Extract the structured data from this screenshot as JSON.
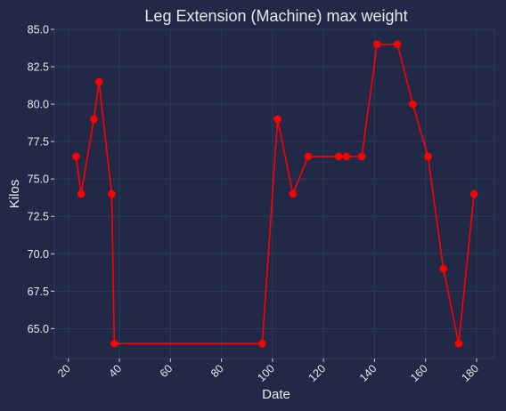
{
  "chart_data": {
    "type": "line",
    "title": "Leg Extension (Machine) max weight",
    "xlabel": "Date",
    "ylabel": "Kilos",
    "xlim": [
      14.5,
      187
    ],
    "ylim": [
      63,
      85
    ],
    "xticks": [
      20,
      40,
      60,
      80,
      100,
      120,
      140,
      160,
      180
    ],
    "yticks": [
      65.0,
      67.5,
      70.0,
      72.5,
      75.0,
      77.5,
      80.0,
      82.5,
      85.0
    ],
    "grid": true,
    "series": [
      {
        "name": "max weight",
        "color": "#ff0000",
        "x": [
          23,
          25,
          30,
          32,
          37,
          38,
          96,
          102,
          108,
          114,
          126,
          129,
          135,
          141,
          149,
          155,
          161,
          167,
          173,
          179
        ],
        "y": [
          76.5,
          74,
          79,
          81.5,
          74,
          64,
          64,
          79,
          74,
          76.5,
          76.5,
          76.5,
          76.5,
          84,
          84,
          80,
          76.5,
          69,
          64,
          74
        ]
      }
    ]
  }
}
